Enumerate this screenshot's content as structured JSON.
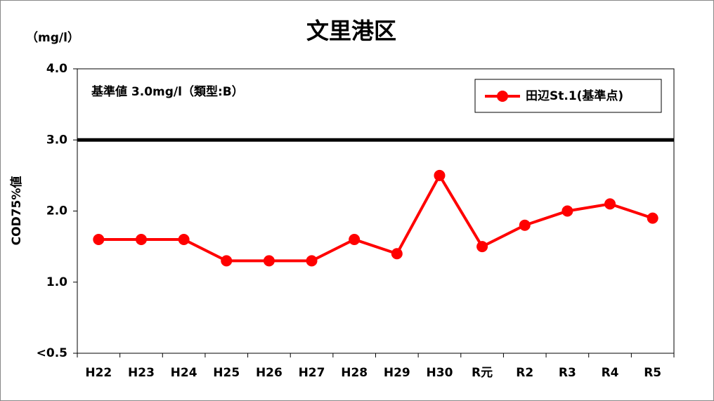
{
  "chart_data": {
    "type": "line",
    "title": "文里港区",
    "y_unit": "（mg/l）",
    "y_label": "COD75%値",
    "annotation": "基準値  3.0mg/l（類型:B）",
    "reference_value": 3,
    "categories": [
      "H22",
      "H23",
      "H24",
      "H25",
      "H26",
      "H27",
      "H28",
      "H29",
      "H30",
      "R元",
      "R2",
      "R3",
      "R4",
      "R5"
    ],
    "series": [
      {
        "name": "田辺St.1(基準点)",
        "color": "#ff0000",
        "values": [
          1.6,
          1.6,
          1.6,
          1.3,
          1.3,
          1.3,
          1.6,
          1.4,
          2.5,
          1.5,
          1.8,
          2.0,
          2.1,
          1.9
        ]
      }
    ],
    "ylim": [
      0,
      4
    ],
    "yticks": [
      {
        "value": 0,
        "label": "<0.5"
      },
      {
        "value": 1,
        "label": "1.0"
      },
      {
        "value": 2,
        "label": "2.0"
      },
      {
        "value": 3,
        "label": "3.0"
      },
      {
        "value": 4,
        "label": "4.0"
      }
    ],
    "legend": "top-right"
  }
}
